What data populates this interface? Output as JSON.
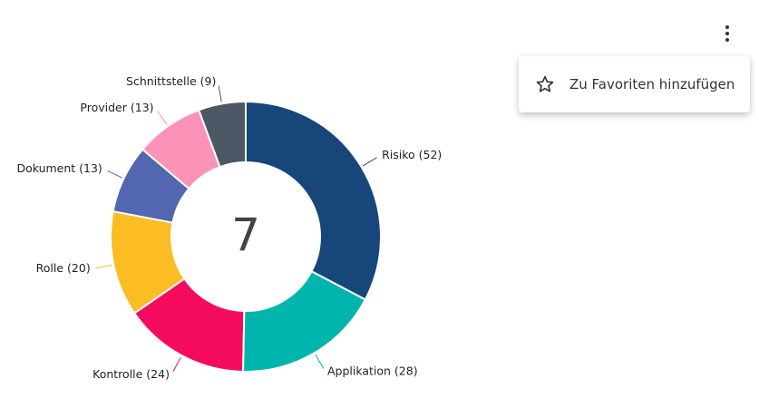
{
  "chart_data": {
    "type": "donut",
    "categories": [
      "Risiko (52)",
      "Applikation (28)",
      "Kontrolle (24)",
      "Rolle (20)",
      "Dokument (13)",
      "Provider (13)",
      "Schnittstelle (9)"
    ],
    "values": [
      52,
      28,
      24,
      20,
      13,
      13,
      9
    ],
    "colors": [
      "#16467a",
      "#00b5ad",
      "#f50b5d",
      "#fbbd23",
      "#5366b0",
      "#fd92b8",
      "#4c5866"
    ],
    "center_value": 7
  },
  "menu": {
    "items": [
      {
        "label": "Zu Favoriten hinzufügen"
      }
    ]
  }
}
